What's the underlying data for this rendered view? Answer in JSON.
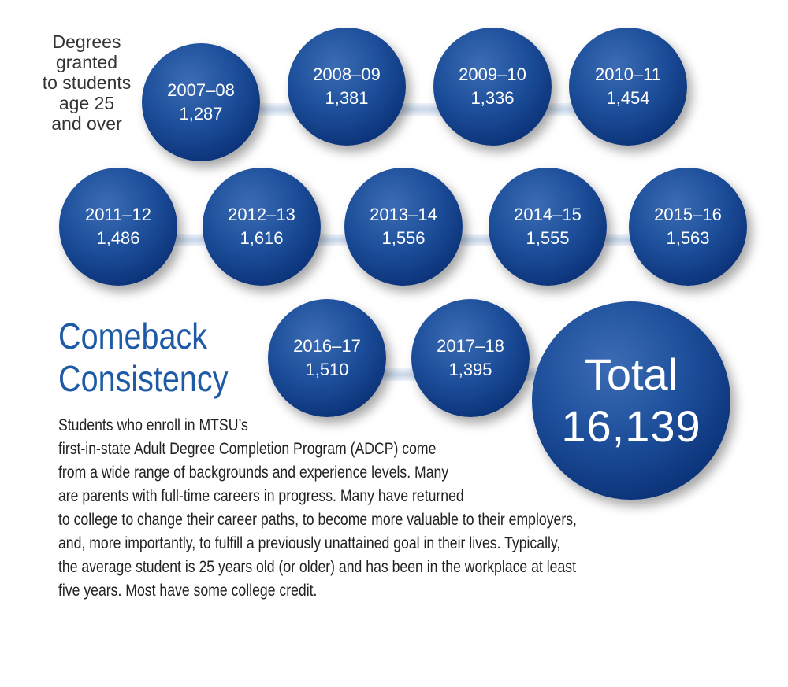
{
  "side_label": [
    "Degrees",
    "granted",
    "to students",
    "age 25",
    "and over"
  ],
  "bubbles": [
    {
      "year": "2007–08",
      "value": "1,287"
    },
    {
      "year": "2008–09",
      "value": "1,381"
    },
    {
      "year": "2009–10",
      "value": "1,336"
    },
    {
      "year": "2010–11",
      "value": "1,454"
    },
    {
      "year": "2011–12",
      "value": "1,486"
    },
    {
      "year": "2012–13",
      "value": "1,616"
    },
    {
      "year": "2013–14",
      "value": "1,556"
    },
    {
      "year": "2014–15",
      "value": "1,555"
    },
    {
      "year": "2015–16",
      "value": "1,563"
    },
    {
      "year": "2016–17",
      "value": "1,510"
    },
    {
      "year": "2017–18",
      "value": "1,395"
    }
  ],
  "total": {
    "label": "Total",
    "value": "16,139"
  },
  "heading": [
    "Comeback",
    "Consistency"
  ],
  "body_lines": [
    "Students who enroll in MTSU’s",
    "first-in-state Adult Degree Completion Program (ADCP) come",
    "from a wide range of backgrounds and experience levels. Many",
    "are parents with full-time careers in progress. Many have returned",
    "to college to change their career paths, to become more valuable to their employers,",
    "and, more importantly, to fulfill a previously unattained goal in their lives. Typically,",
    "the average student is 25 years old (or older) and has been in the workplace at least",
    "five years. Most have some college credit."
  ],
  "colors": {
    "bubble": "#1c4d99",
    "heading": "#1f5aa6",
    "connector": "#c9d7ea"
  }
}
